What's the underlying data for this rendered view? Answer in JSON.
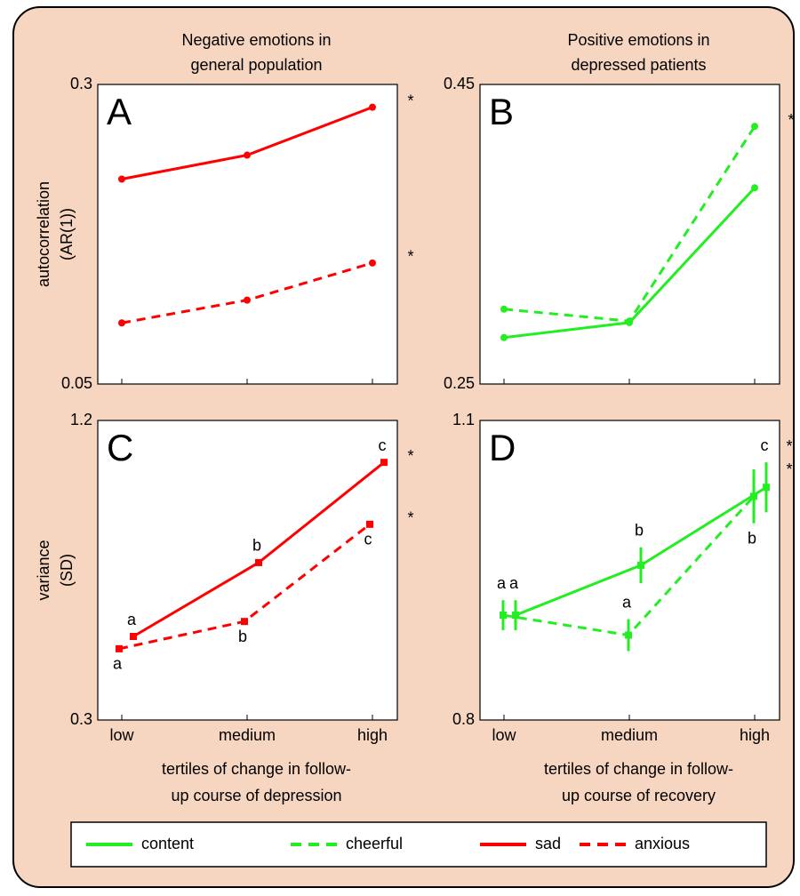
{
  "chart_data": [
    {
      "type": "line",
      "panel_label": "A",
      "title": [
        "Negative emotions in",
        "general population"
      ],
      "ylabel": [
        "autocorrelation",
        "(AR(1))"
      ],
      "categories": [
        null,
        null,
        null
      ],
      "ylim": [
        0.05,
        0.3
      ],
      "yticks": [
        0.05,
        0.3
      ],
      "series": [
        {
          "name": "sad",
          "color": "#ff0000",
          "line_style": "solid",
          "values": [
            0.221,
            0.241,
            0.281
          ],
          "significance": "*"
        },
        {
          "name": "anxious",
          "color": "#ff0000",
          "line_style": "dashed",
          "values": [
            0.101,
            0.12,
            0.151
          ],
          "significance": "*"
        }
      ]
    },
    {
      "type": "line",
      "panel_label": "B",
      "title": [
        "Positive emotions in",
        "depressed patients"
      ],
      "categories": [
        null,
        null,
        null
      ],
      "ylim": [
        0.25,
        0.45
      ],
      "yticks": [
        0.25,
        0.45
      ],
      "series": [
        {
          "name": "content",
          "color": "#22ee22",
          "line_style": "solid",
          "values": [
            0.281,
            0.291,
            0.381
          ]
        },
        {
          "name": "cheerful",
          "color": "#22ee22",
          "line_style": "dashed",
          "values": [
            0.3,
            0.292,
            0.422
          ],
          "significance": "*"
        }
      ]
    },
    {
      "type": "line",
      "panel_label": "C",
      "ylabel": [
        "variance",
        "(SD)"
      ],
      "xlabel": [
        "tertiles of change in follow-",
        "up course of depression"
      ],
      "categories": [
        "low",
        "medium",
        "high"
      ],
      "ylim": [
        0.3,
        1.2
      ],
      "yticks": [
        0.3,
        1.2
      ],
      "series": [
        {
          "name": "sad",
          "color": "#ff0000",
          "line_style": "solid",
          "values": [
            0.551,
            0.773,
            1.074
          ],
          "significance": "*",
          "point_labels": [
            "a",
            "b",
            "c"
          ],
          "point_label_side": [
            "above",
            "above",
            "above"
          ]
        },
        {
          "name": "anxious",
          "color": "#ff0000",
          "line_style": "dashed",
          "values": [
            0.514,
            0.596,
            0.888
          ],
          "significance": "*",
          "point_labels": [
            "a",
            "b",
            "c"
          ],
          "point_label_side": [
            "below",
            "below",
            "below"
          ]
        }
      ]
    },
    {
      "type": "line",
      "panel_label": "D",
      "xlabel": [
        "tertiles of change in follow-",
        "up course of recovery"
      ],
      "categories": [
        "low",
        "medium",
        "high"
      ],
      "ylim": [
        0.8,
        1.1
      ],
      "yticks": [
        0.8,
        1.1
      ],
      "series": [
        {
          "name": "content",
          "color": "#22ee22",
          "line_style": "solid",
          "values": [
            0.905,
            0.955,
            1.033
          ],
          "errors": [
            0.015,
            0.018,
            0.025
          ],
          "significance": "*",
          "point_labels": [
            "a",
            "b",
            "c"
          ],
          "point_label_side": [
            "above",
            "above",
            "above"
          ]
        },
        {
          "name": "cheerful",
          "color": "#22ee22",
          "line_style": "dashed",
          "values": [
            0.905,
            0.885,
            1.024
          ],
          "errors": [
            0.015,
            0.016,
            0.027
          ],
          "significance": "*",
          "point_labels": [
            "a",
            "a",
            "b"
          ],
          "point_label_side": [
            "above",
            "above",
            "below"
          ]
        }
      ]
    }
  ]
}
